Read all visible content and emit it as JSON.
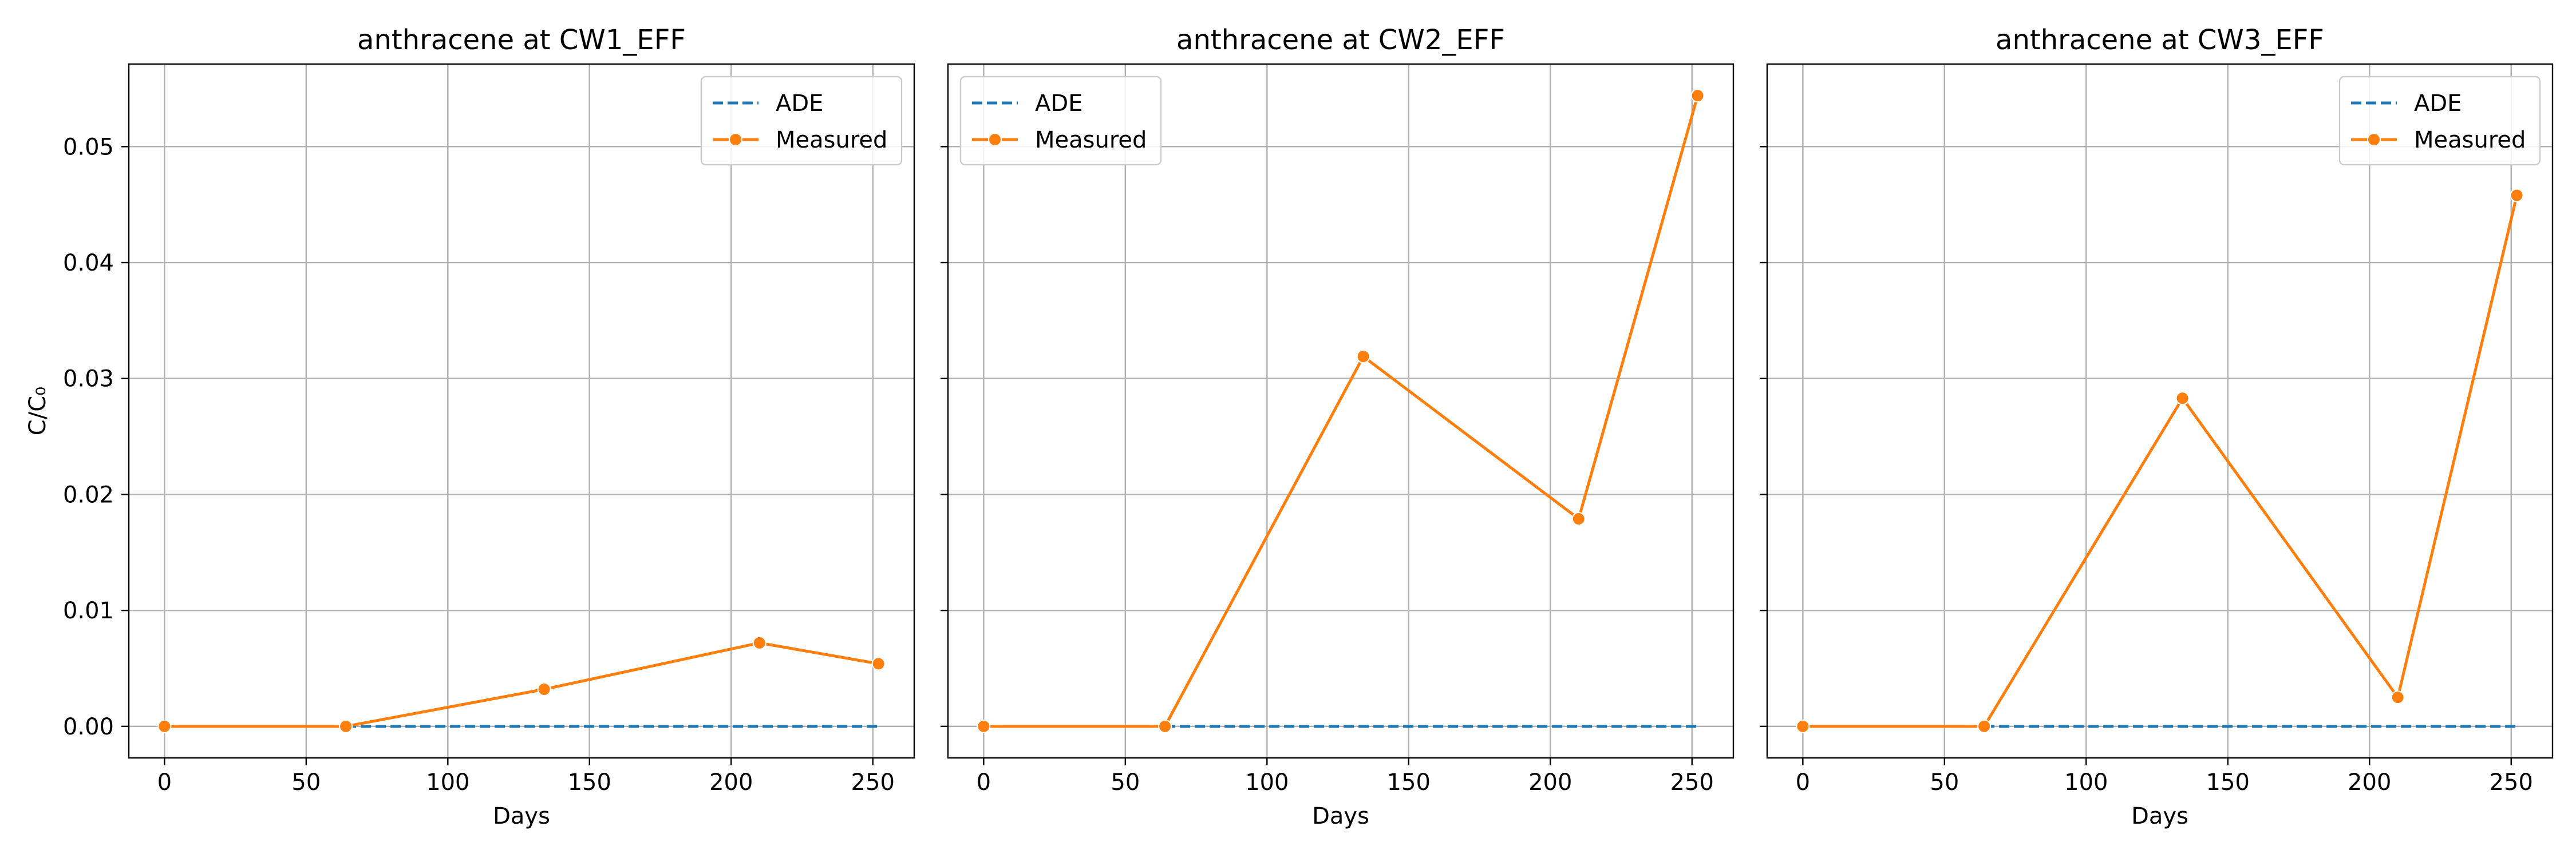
{
  "figure": {
    "shared_ylabel": "C/C₀",
    "colors": {
      "ade": "#1f77b4",
      "measured": "#ff7f0e",
      "grid": "#b0b0b0",
      "legend_border": "#cccccc"
    }
  },
  "chart_data": [
    {
      "type": "line",
      "title": "anthracene at CW1_EFF",
      "xlabel": "Days",
      "ylabel": "C/C₀",
      "xlim": [
        -12.6,
        264.6
      ],
      "ylim": [
        -0.00272,
        0.05712
      ],
      "xticks": [
        0,
        50,
        100,
        150,
        200,
        250
      ],
      "yticks": [
        0.0,
        0.01,
        0.02,
        0.03,
        0.04,
        0.05
      ],
      "ytick_labels": [
        "0.00",
        "0.01",
        "0.02",
        "0.03",
        "0.04",
        "0.05"
      ],
      "grid": true,
      "legend_position": "top-right",
      "series": [
        {
          "name": "ADE",
          "style": "dashed",
          "x": [
            64,
            252
          ],
          "y": [
            0.0,
            0.0
          ]
        },
        {
          "name": "Measured",
          "style": "solid-marker",
          "x": [
            0,
            64,
            134,
            210,
            252
          ],
          "y": [
            0.0,
            0.0,
            0.0032,
            0.0072,
            0.0054
          ]
        }
      ]
    },
    {
      "type": "line",
      "title": "anthracene at CW2_EFF",
      "xlabel": "Days",
      "ylabel": "",
      "xlim": [
        -12.6,
        264.6
      ],
      "ylim": [
        -0.00272,
        0.05712
      ],
      "xticks": [
        0,
        50,
        100,
        150,
        200,
        250
      ],
      "yticks": [
        0.0,
        0.01,
        0.02,
        0.03,
        0.04,
        0.05
      ],
      "ytick_labels": [],
      "grid": true,
      "legend_position": "top-left",
      "series": [
        {
          "name": "ADE",
          "style": "dashed",
          "x": [
            64,
            252
          ],
          "y": [
            0.0,
            0.0
          ]
        },
        {
          "name": "Measured",
          "style": "solid-marker",
          "x": [
            0,
            64,
            134,
            210,
            252
          ],
          "y": [
            0.0,
            0.0,
            0.0319,
            0.0179,
            0.0544
          ]
        }
      ]
    },
    {
      "type": "line",
      "title": "anthracene at CW3_EFF",
      "xlabel": "Days",
      "ylabel": "",
      "xlim": [
        -12.6,
        264.6
      ],
      "ylim": [
        -0.00272,
        0.05712
      ],
      "xticks": [
        0,
        50,
        100,
        150,
        200,
        250
      ],
      "yticks": [
        0.0,
        0.01,
        0.02,
        0.03,
        0.04,
        0.05
      ],
      "ytick_labels": [],
      "grid": true,
      "legend_position": "top-right",
      "series": [
        {
          "name": "ADE",
          "style": "dashed",
          "x": [
            64,
            252
          ],
          "y": [
            0.0,
            0.0
          ]
        },
        {
          "name": "Measured",
          "style": "solid-marker",
          "x": [
            0,
            64,
            134,
            210,
            252
          ],
          "y": [
            0.0,
            0.0,
            0.0283,
            0.0025,
            0.0458
          ]
        }
      ]
    }
  ]
}
